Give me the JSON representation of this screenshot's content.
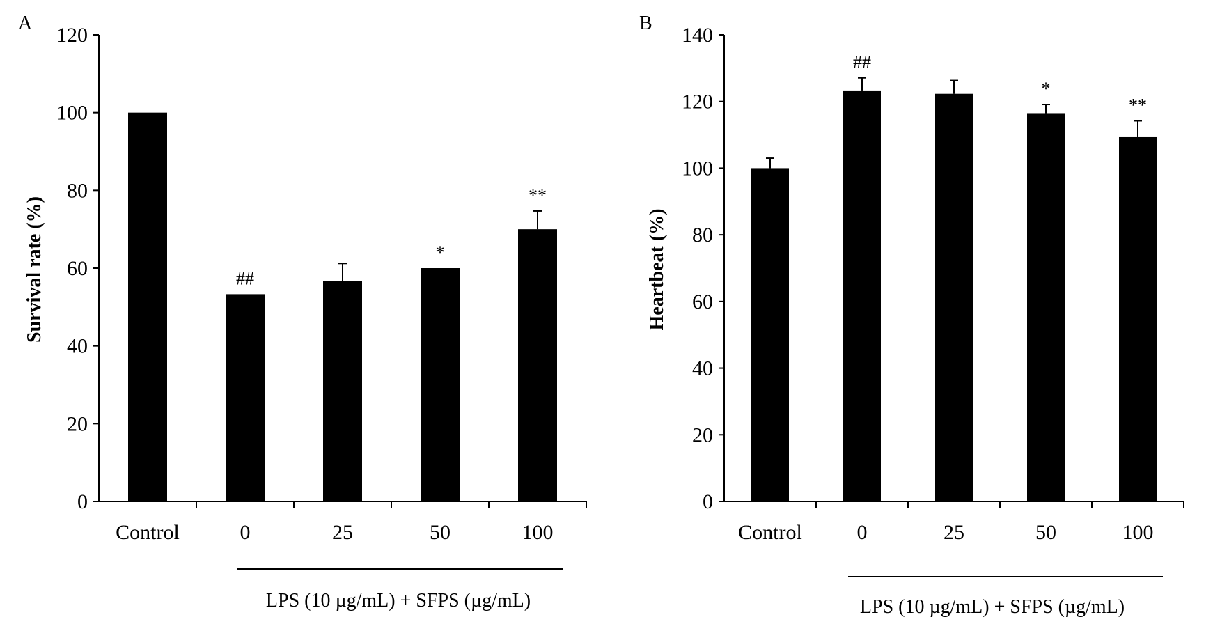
{
  "chart_data": [
    {
      "type": "bar",
      "panel": "A",
      "title": "",
      "xlabel": "",
      "ylabel": "Survival rate (%)",
      "group_label": "LPS (10 µg/mL) + SFPS (µg/mL)",
      "categories": [
        "Control",
        "0",
        "25",
        "50",
        "100"
      ],
      "values": [
        100,
        53.3,
        56.7,
        60,
        70
      ],
      "errors": [
        0,
        0,
        4.5,
        0,
        4.7
      ],
      "significance": [
        "",
        "##",
        "",
        "*",
        "**"
      ],
      "ylim": [
        0,
        120
      ],
      "yticks": [
        0,
        20,
        40,
        60,
        80,
        100,
        120
      ],
      "grid": false,
      "bar_color": "#000000"
    },
    {
      "type": "bar",
      "panel": "B",
      "title": "",
      "xlabel": "",
      "ylabel": "Heartbeat (%)",
      "group_label": "LPS (10 µg/mL) + SFPS (µg/mL)",
      "categories": [
        "Control",
        "0",
        "25",
        "50",
        "100"
      ],
      "values": [
        100,
        123.3,
        122.3,
        116.5,
        109.5
      ],
      "errors": [
        3,
        3.8,
        4,
        2.6,
        4.7
      ],
      "significance": [
        "",
        "##",
        "",
        "*",
        "**"
      ],
      "ylim": [
        0,
        140
      ],
      "yticks": [
        0,
        20,
        40,
        60,
        80,
        100,
        120,
        140
      ],
      "grid": false,
      "bar_color": "#000000"
    }
  ]
}
